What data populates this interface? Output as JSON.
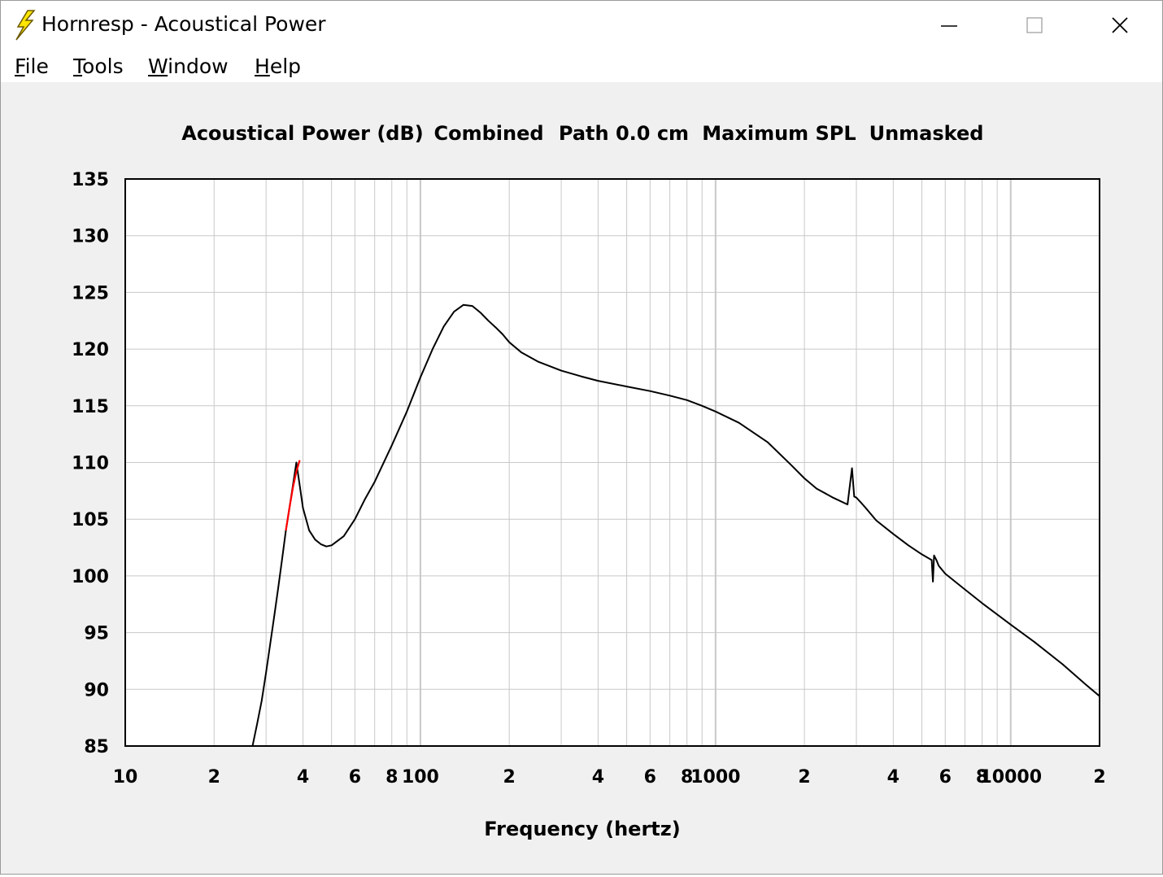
{
  "window": {
    "title": "Hornresp - Acoustical Power",
    "icon": "lightning-icon",
    "controls": [
      "minimize-icon",
      "maximize-icon",
      "close-icon"
    ]
  },
  "menu": {
    "items": [
      {
        "label": "File",
        "accel": "F",
        "rest": "ile"
      },
      {
        "label": "Tools",
        "accel": "T",
        "rest": "ools"
      },
      {
        "label": "Window",
        "accel": "W",
        "rest": "indow"
      },
      {
        "label": "Help",
        "accel": "H",
        "rest": "elp"
      }
    ]
  },
  "chart_data": {
    "type": "line",
    "title_parts": [
      "Acoustical Power (dB)",
      "Combined",
      "Path 0.0 cm",
      "Maximum SPL",
      "Unmasked"
    ],
    "xlabel": "Frequency (hertz)",
    "ylabel": "",
    "xscale": "log",
    "xlim": [
      10,
      20000
    ],
    "ylim": [
      85,
      135
    ],
    "yticks": [
      135,
      130,
      125,
      120,
      115,
      110,
      105,
      100,
      95,
      90,
      85
    ],
    "xtick_labels": [
      {
        "value": 10,
        "label": "10"
      },
      {
        "value": 20,
        "label": "2"
      },
      {
        "value": 40,
        "label": "4"
      },
      {
        "value": 60,
        "label": "6"
      },
      {
        "value": 80,
        "label": "8"
      },
      {
        "value": 100,
        "label": "100"
      },
      {
        "value": 200,
        "label": "2"
      },
      {
        "value": 400,
        "label": "4"
      },
      {
        "value": 600,
        "label": "6"
      },
      {
        "value": 800,
        "label": "8"
      },
      {
        "value": 1000,
        "label": "1000"
      },
      {
        "value": 2000,
        "label": "2"
      },
      {
        "value": 4000,
        "label": "4"
      },
      {
        "value": 6000,
        "label": "6"
      },
      {
        "value": 8000,
        "label": "8"
      },
      {
        "value": 10000,
        "label": "10000"
      },
      {
        "value": 20000,
        "label": "2"
      }
    ],
    "grid": true,
    "colors": {
      "main": "#000000",
      "highlight": "#ff0000",
      "grid": "#c8c8c8",
      "background": "#ffffff"
    },
    "series": [
      {
        "color": "#000000",
        "x": [
          27,
          28,
          29,
          30,
          32,
          33,
          34,
          35,
          36,
          37,
          38,
          39,
          40,
          42,
          44,
          46,
          48,
          50,
          55,
          60,
          65,
          70,
          80,
          90,
          100,
          110,
          120,
          130,
          140,
          150,
          160,
          170,
          180,
          190,
          200,
          220,
          250,
          300,
          350,
          400,
          500,
          600,
          700,
          800,
          900,
          1000,
          1200,
          1500,
          1800,
          2000,
          2200,
          2500,
          2800,
          2900,
          2950,
          3000,
          3050,
          3100,
          3200,
          3500,
          4000,
          4500,
          5000,
          5400,
          5450,
          5500,
          5600,
          5700,
          6000,
          7000,
          8000,
          10000,
          12000,
          15000,
          18000,
          20000
        ],
        "y": [
          85,
          87,
          89,
          91.5,
          96.5,
          99,
          101.5,
          104,
          106,
          108,
          110,
          108,
          106,
          104,
          103.2,
          102.8,
          102.6,
          102.7,
          103.5,
          105,
          106.8,
          108.3,
          111.5,
          114.5,
          117.5,
          120,
          122,
          123.3,
          123.9,
          123.8,
          123.2,
          122.5,
          121.9,
          121.3,
          120.6,
          119.7,
          118.9,
          118.1,
          117.6,
          117.2,
          116.7,
          116.3,
          115.9,
          115.5,
          115.0,
          114.5,
          113.5,
          111.8,
          109.8,
          108.6,
          107.7,
          106.9,
          106.3,
          109.5,
          107,
          106.9,
          106.7,
          106.5,
          106.1,
          104.9,
          103.7,
          102.7,
          101.9,
          101.4,
          99.5,
          101.8,
          101.4,
          100.9,
          100.2,
          98.8,
          97.6,
          95.7,
          94.2,
          92.2,
          90.4,
          89.4
        ]
      },
      {
        "color": "#ff0000",
        "x": [
          35,
          36,
          37,
          38,
          39
        ],
        "y": [
          104,
          106,
          107.8,
          109.2,
          110.2
        ]
      }
    ]
  }
}
